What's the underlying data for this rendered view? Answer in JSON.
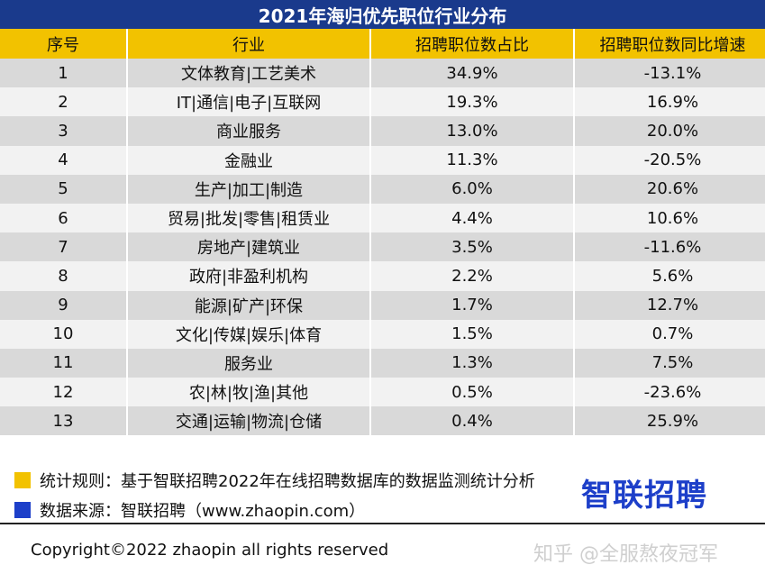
{
  "title": "2021年海归优先职位行业分布",
  "columns": [
    "序号",
    "行业",
    "招聘职位数占比",
    "招聘职位数同比增速"
  ],
  "rows": [
    [
      "1",
      "文体教育|工艺美术",
      "34.9%",
      "-13.1%"
    ],
    [
      "2",
      "IT|通信|电子|互联网",
      "19.3%",
      "16.9%"
    ],
    [
      "3",
      "商业服务",
      "13.0%",
      "20.0%"
    ],
    [
      "4",
      "金融业",
      "11.3%",
      "-20.5%"
    ],
    [
      "5",
      "生产|加工|制造",
      "6.0%",
      "20.6%"
    ],
    [
      "6",
      "贸易|批发|零售|租赁业",
      "4.4%",
      "10.6%"
    ],
    [
      "7",
      "房地产|建筑业",
      "3.5%",
      "-11.6%"
    ],
    [
      "8",
      "政府|非盈利机构",
      "2.2%",
      "5.6%"
    ],
    [
      "9",
      "能源|矿产|环保",
      "1.7%",
      "12.7%"
    ],
    [
      "10",
      "文化|传媒|娱乐|体育",
      "1.5%",
      "0.7%"
    ],
    [
      "11",
      "服务业",
      "1.3%",
      "7.5%"
    ],
    [
      "12",
      "农|林|牧|渔|其他",
      "0.5%",
      "-23.6%"
    ],
    [
      "13",
      "交通|运输|物流|仓储",
      "0.4%",
      "25.9%"
    ]
  ],
  "notes": {
    "rule": "统计规则：基于智联招聘2022年在线招聘数据库的数据监测统计分析",
    "source": "数据来源：智联招聘（www.zhaopin.com）"
  },
  "brand": "智联招聘",
  "copyright": "Copyright©2022 zhaopin all rights reserved",
  "watermark": "知乎 @全服熬夜冠军",
  "colors": {
    "title_bg": "#1a3a8c",
    "header_bg": "#f2c200",
    "row_dark": "#d9d9d9",
    "row_light": "#f2f2f2",
    "legend_yellow": "#f2c200",
    "legend_blue": "#1d3fc9",
    "brand": "#1d3fc9"
  }
}
